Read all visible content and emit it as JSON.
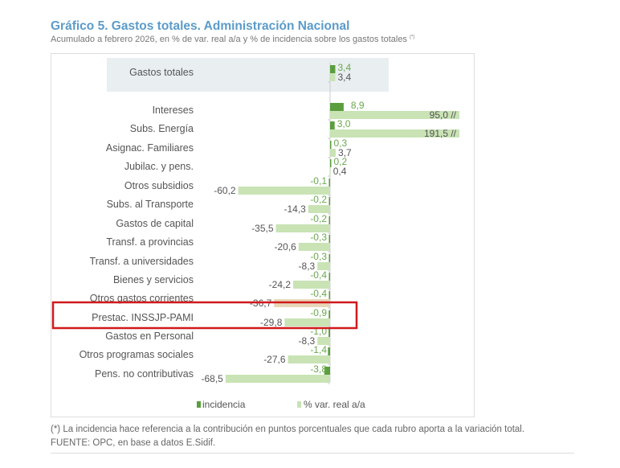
{
  "chart_data": {
    "type": "bar",
    "orientation": "horizontal",
    "title": "Gráfico 5. Gastos totales. Administración Nacional",
    "subtitle": "Acumulado a febrero 2026, en % de var. real a/a y % de incidencia sobre los gastos totales",
    "subtitle_note_marker": "(*)",
    "categories": [
      "Gastos totales",
      "Intereses",
      "Subs. Energía",
      "Asignac. Familiares",
      "Jubilac. y pens.",
      "Otros subsidios",
      "Subs. al Transporte",
      "Gastos de capital",
      "Transf. a provincias",
      "Transf. a universidades",
      "Bienes y servicios",
      "Otros gastos corrientes",
      "Prestac. INSSJP-PAMI",
      "Gastos en Personal",
      "Otros programas sociales",
      "Pens. no contributivas"
    ],
    "series": [
      {
        "name": "incidencia",
        "color": "#5b9e3d",
        "values": [
          3.4,
          8.9,
          3.0,
          0.3,
          0.2,
          -0.1,
          -0.2,
          -0.2,
          -0.3,
          -0.3,
          -0.4,
          -0.4,
          -0.9,
          -1.0,
          -1.4,
          -3.8
        ]
      },
      {
        "name": "% var. real a/a",
        "color": "#c9e3b5",
        "values": [
          3.4,
          95.0,
          191.5,
          3.7,
          0.4,
          -60.2,
          -14.3,
          -35.5,
          -20.6,
          -8.3,
          -24.2,
          -36.7,
          -29.8,
          -8.3,
          -27.6,
          -68.5
        ]
      }
    ],
    "labels": {
      "incidencia": [
        "3,4",
        "8,9",
        "3,0",
        "0,3",
        "0,2",
        "-0,1",
        "-0,2",
        "-0,2",
        "-0,3",
        "-0,3",
        "-0,4",
        "-0,4",
        "-0,9",
        "-1,0",
        "-1,4",
        "-3,8"
      ],
      "var": [
        "3,4",
        "95,0 //",
        "191,5 //",
        "3,7",
        "0,4",
        "-60,2",
        "-14,3",
        "-35,5",
        "-20,6",
        "-8,3",
        "-24,2",
        "-36,7",
        "-29,8",
        "-8,3",
        "-27,6",
        "-68,5"
      ]
    },
    "broken_axis_categories": [
      "Intereses",
      "Subs. Energía"
    ],
    "highlighted_category": "Prestac. INSSJP-PAMI",
    "highlight_color": "#d0191c",
    "emphasized_category": "Gastos totales",
    "legend": [
      "incidencia",
      "% var. real a/a"
    ],
    "legend_position": "bottom",
    "grid": false
  },
  "footnote": "(*) La incidencia hace referencia a la contribución en puntos porcentuales que cada rubro aporta a la variación total.",
  "source": "FUENTE: OPC, en base a datos E.Sidif."
}
